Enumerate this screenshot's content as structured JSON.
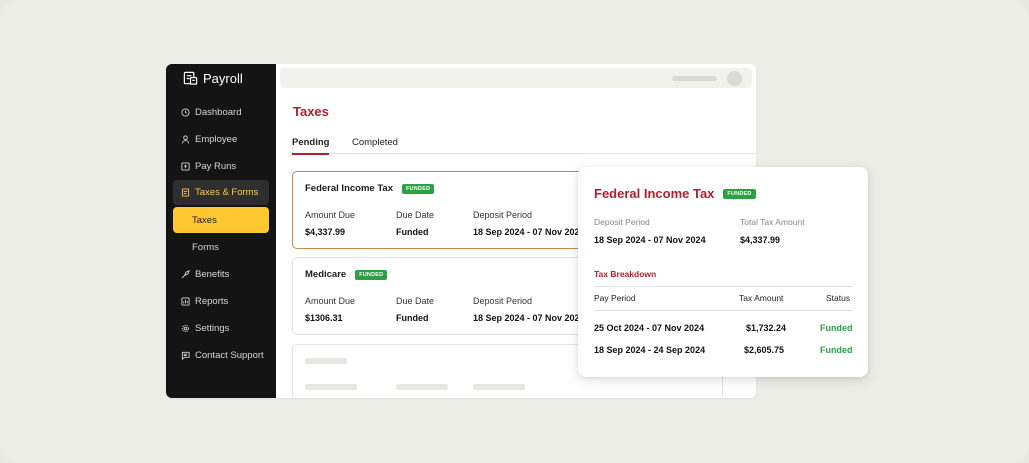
{
  "app": {
    "name": "Payroll"
  },
  "sidebar": {
    "items": [
      {
        "label": "Dashboard",
        "icon": "clock-icon"
      },
      {
        "label": "Employee",
        "icon": "person-icon"
      },
      {
        "label": "Pay Runs",
        "icon": "payruns-icon"
      },
      {
        "label": "Taxes & Forms",
        "icon": "document-icon"
      },
      {
        "label": "Taxes"
      },
      {
        "label": "Forms"
      },
      {
        "label": "Benefits",
        "icon": "benefits-icon"
      },
      {
        "label": "Reports",
        "icon": "reports-icon"
      },
      {
        "label": "Settings",
        "icon": "gear-icon"
      },
      {
        "label": "Contact Support",
        "icon": "chat-icon"
      }
    ]
  },
  "page": {
    "title": "Taxes"
  },
  "tabs": [
    {
      "label": "Pending"
    },
    {
      "label": "Completed"
    }
  ],
  "cards": [
    {
      "title": "Federal Income Tax",
      "badge": "FUNDED",
      "amount_label": "Amount Due",
      "amount": "$4,337.99",
      "due_label": "Due Date",
      "due": "Funded",
      "period_label": "Deposit Period",
      "period": "18 Sep 2024 - 07 Nov 2024"
    },
    {
      "title": "Medicare",
      "badge": "FUNDED",
      "amount_label": "Amount Due",
      "amount": "$1306.31",
      "due_label": "Due Date",
      "due": "Funded",
      "period_label": "Deposit Period",
      "period": "18 Sep 2024 - 07 Nov 2024"
    }
  ],
  "detail": {
    "title": "Federal Income Tax",
    "badge": "FUNDED",
    "deposit_period_label": "Deposit Period",
    "deposit_period": "18 Sep 2024 - 07 Nov 2024",
    "total_label": "Total Tax Amount",
    "total": "$4,337.99",
    "breakdown_title": "Tax Breakdown",
    "columns": [
      "Pay Period",
      "Tax Amount",
      "Status"
    ],
    "rows": [
      {
        "period": "25 Oct 2024 - 07 Nov 2024",
        "amount": "$1,732.24",
        "status": "Funded"
      },
      {
        "period": "18 Sep 2024 - 24 Sep 2024",
        "amount": "$2,605.75",
        "status": "Funded"
      }
    ]
  },
  "colors": {
    "accent": "#b01f2c",
    "highlight": "#ffc831",
    "funded": "#2ea043",
    "sidebar": "#141414"
  }
}
